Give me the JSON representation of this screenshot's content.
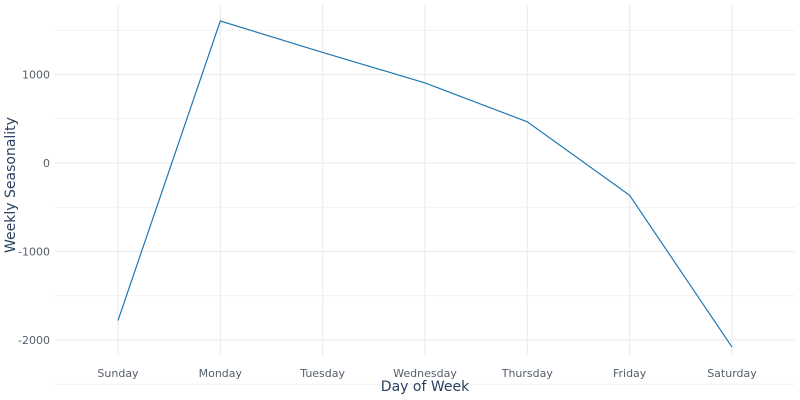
{
  "chart_data": {
    "type": "line",
    "title": "",
    "xlabel": "Day of Week",
    "ylabel": "Weekly Seasonality",
    "categories": [
      "Sunday",
      "Monday",
      "Tuesday",
      "Wednesday",
      "Thursday",
      "Friday",
      "Saturday"
    ],
    "series": [
      {
        "values": [
          -1780,
          1605,
          1250,
          905,
          465,
          -365,
          -2080
        ]
      }
    ],
    "yticks": [
      -2000,
      -1000,
      0,
      1000
    ],
    "ytick_labels": [
      "-2000",
      "-1000",
      "0",
      "1000"
    ],
    "ylim": [
      -2100,
      1790
    ],
    "grid": true,
    "colors": {
      "line": "#1f77b4",
      "grid": "#ebedf0",
      "text": "#555e6b",
      "title_text": "#2a3f5f"
    }
  }
}
